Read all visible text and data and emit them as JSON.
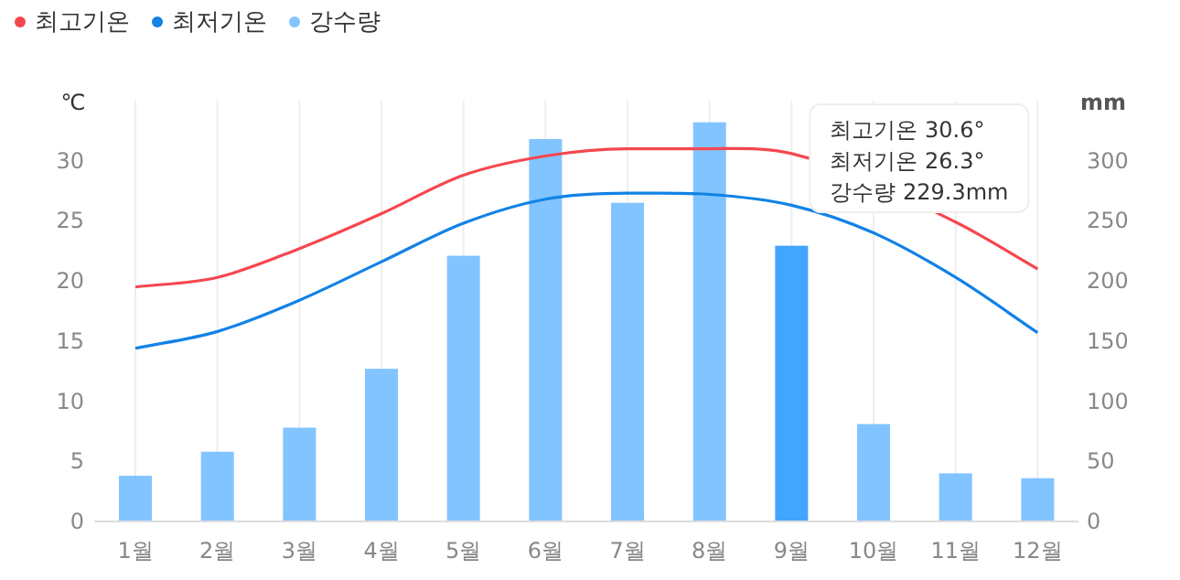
{
  "chart_data": {
    "type": "bar",
    "categories": [
      "1월",
      "2월",
      "3월",
      "4월",
      "5월",
      "6월",
      "7월",
      "8월",
      "9월",
      "10월",
      "11월",
      "12월"
    ],
    "series": [
      {
        "name": "최고기온",
        "type": "line",
        "color": "#f5474f",
        "values": [
          19.5,
          20.3,
          22.7,
          25.6,
          28.8,
          30.4,
          31.0,
          31.0,
          30.6,
          null,
          24.9,
          21.0
        ]
      },
      {
        "name": "최저기온",
        "type": "line",
        "color": "#1282e6",
        "values": [
          14.4,
          15.8,
          18.4,
          21.6,
          24.8,
          26.8,
          27.3,
          27.2,
          26.3,
          24.0,
          20.3,
          15.7
        ]
      },
      {
        "name": "강수량",
        "axis": "y2",
        "color": "#82c4ff",
        "colors": [
          "#82c4ff",
          "#82c4ff",
          "#82c4ff",
          "#82c4ff",
          "#82c4ff",
          "#82c4ff",
          "#82c4ff",
          "#82c4ff",
          "#42a5ff",
          "#82c4ff",
          "#82c4ff",
          "#82c4ff"
        ],
        "values": [
          38,
          58,
          78,
          127,
          221,
          318,
          265,
          332,
          229.3,
          81,
          40,
          36
        ]
      }
    ],
    "ylabel": "℃",
    "y2label": "mm",
    "ylim": [
      0,
      35
    ],
    "yticks": [
      0,
      5,
      10,
      15,
      20,
      25,
      30
    ],
    "y2lim": [
      0,
      350
    ],
    "y2ticks": [
      0,
      50,
      100,
      150,
      200,
      250,
      300
    ],
    "grid": "x",
    "legend": "top left",
    "annotations": [
      "최고기온 30.6°",
      "최저기온 26.3°",
      "강수량 229.3mm"
    ]
  }
}
